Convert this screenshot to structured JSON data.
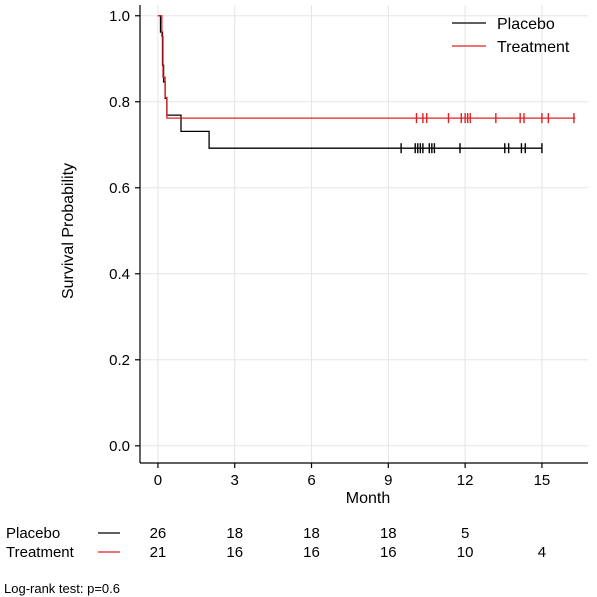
{
  "chart_data": {
    "type": "line",
    "subtype": "kaplan-meier",
    "xlabel": "Month",
    "ylabel": "Survival Probability",
    "xlim": [
      -0.7,
      16.8
    ],
    "ylim": [
      -0.04,
      1.025
    ],
    "xticks": [
      0,
      3,
      6,
      9,
      12,
      15
    ],
    "yticks": [
      0.0,
      0.2,
      0.4,
      0.6,
      0.8,
      1.0
    ],
    "ytick_labels": [
      "0.0",
      "0.2",
      "0.4",
      "0.6",
      "0.8",
      "1.0"
    ],
    "grid": true,
    "legend_position": "top-right",
    "series": [
      {
        "name": "Placebo",
        "color": "#000000",
        "steps": [
          [
            0,
            1.0
          ],
          [
            0.1,
            0.962
          ],
          [
            0.18,
            0.885
          ],
          [
            0.22,
            0.846
          ],
          [
            0.28,
            0.808
          ],
          [
            0.35,
            0.769
          ],
          [
            0.9,
            0.731
          ],
          [
            2.0,
            0.692
          ],
          [
            15.0,
            0.692
          ]
        ],
        "censored_x": [
          9.5,
          10.05,
          10.15,
          10.25,
          10.35,
          10.6,
          10.7,
          10.8,
          11.8,
          13.55,
          13.7,
          14.2,
          14.35,
          15.0
        ],
        "censored_y": 0.692
      },
      {
        "name": "Treatment",
        "color": "#e02020",
        "steps": [
          [
            0,
            1.0
          ],
          [
            0.15,
            0.952
          ],
          [
            0.2,
            0.857
          ],
          [
            0.28,
            0.81
          ],
          [
            0.35,
            0.762
          ],
          [
            16.3,
            0.762
          ]
        ],
        "censored_x": [
          10.1,
          10.35,
          10.5,
          11.35,
          11.85,
          12.0,
          12.1,
          12.2,
          13.2,
          14.15,
          14.3,
          15.0,
          15.25,
          16.25
        ],
        "censored_y": 0.762
      }
    ],
    "risk_table": {
      "times": [
        0,
        3,
        6,
        9,
        12,
        15
      ],
      "rows": [
        {
          "name": "Placebo",
          "color": "#000000",
          "counts": [
            "26",
            "18",
            "18",
            "18",
            "5",
            ""
          ]
        },
        {
          "name": "Treatment",
          "color": "#e02020",
          "counts": [
            "21",
            "16",
            "16",
            "16",
            "10",
            "4"
          ]
        }
      ]
    },
    "annotation": "Log-rank test: p=0.6"
  }
}
